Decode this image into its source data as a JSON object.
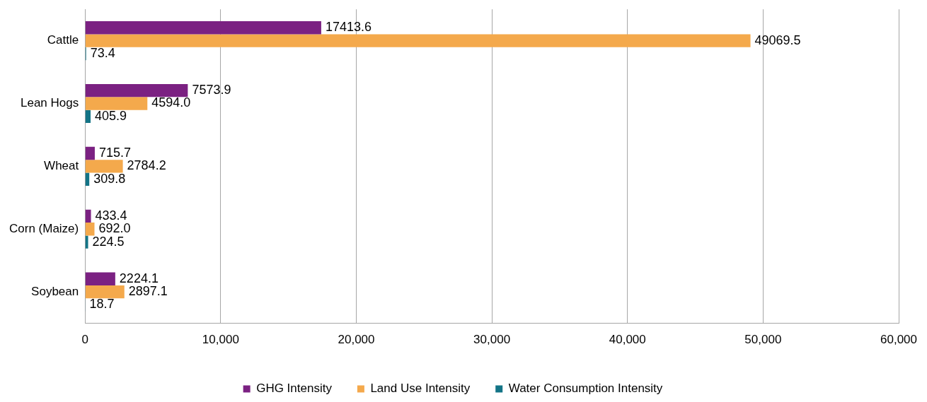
{
  "chart_data": {
    "type": "bar",
    "orientation": "horizontal",
    "categories": [
      "Cattle",
      "Lean Hogs",
      "Wheat",
      "Corn (Maize)",
      "Soybean"
    ],
    "series": [
      {
        "name": "GHG Intensity",
        "color": "#7b2182",
        "values": [
          17413.6,
          7573.9,
          715.7,
          433.4,
          2224.1
        ],
        "value_labels": [
          "17413.6",
          "7573.9",
          "715.7",
          "433.4",
          "2224.1"
        ]
      },
      {
        "name": "Land Use Intensity",
        "color": "#f4a94c",
        "values": [
          49069.5,
          4594.0,
          2784.2,
          692.0,
          2897.1
        ],
        "value_labels": [
          "49069.5",
          "4594.0",
          "2784.2",
          "692.0",
          "2897.1"
        ]
      },
      {
        "name": "Water Consumption Intensity",
        "color": "#137486",
        "values": [
          73.4,
          405.9,
          309.8,
          224.5,
          18.7
        ],
        "value_labels": [
          "73.4",
          "405.9",
          "309.8",
          "224.5",
          "18.7"
        ]
      }
    ],
    "xlim": [
      0,
      60000
    ],
    "xticks": [
      {
        "value": 0,
        "label": "0"
      },
      {
        "value": 10000,
        "label": "10,000"
      },
      {
        "value": 20000,
        "label": "20,000"
      },
      {
        "value": 30000,
        "label": "30,000"
      },
      {
        "value": 40000,
        "label": "40,000"
      },
      {
        "value": 50000,
        "label": "50,000"
      },
      {
        "value": 60000,
        "label": "60,000"
      }
    ],
    "grid": "x",
    "legend": "bottom"
  }
}
